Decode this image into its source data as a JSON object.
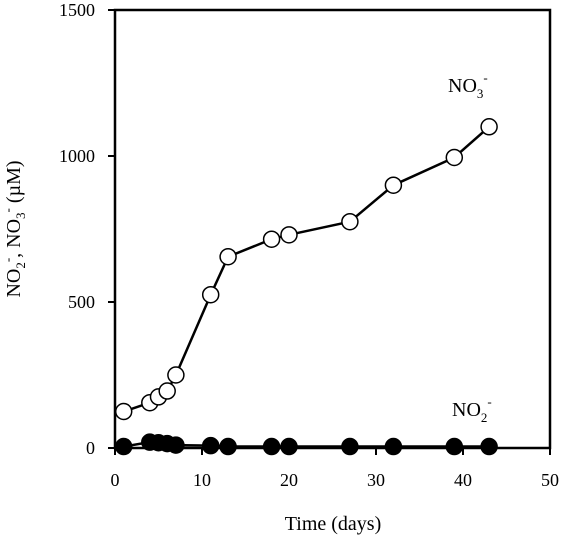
{
  "chart_data": {
    "type": "scatter",
    "title": "",
    "xlabel": "Time (days)",
    "ylabel": {
      "base_a": "NO",
      "sub_a": "2",
      "sup_a": "-",
      "sep": ", NO",
      "sub_b": "3",
      "sup_b": "-",
      "unit": " (µM)"
    },
    "xlim": [
      0,
      50
    ],
    "ylim": [
      0,
      1500
    ],
    "x_ticks": [
      "0",
      "10",
      "20",
      "30",
      "40",
      "50"
    ],
    "y_ticks": [
      "0",
      "500",
      "1000",
      "1500"
    ],
    "grid": false,
    "legend": "none",
    "series": [
      {
        "name": "NO3-",
        "label_base": "NO",
        "label_sub": "3",
        "label_sup": "-",
        "marker": "open-circle",
        "color": "#000000",
        "x": [
          1,
          4,
          5,
          6,
          7,
          11,
          13,
          18,
          20,
          27,
          32,
          39,
          43
        ],
        "y": [
          125,
          155,
          175,
          195,
          250,
          525,
          655,
          715,
          730,
          775,
          900,
          995,
          1100
        ]
      },
      {
        "name": "NO2-",
        "label_base": "NO",
        "label_sub": "2",
        "label_sup": "-",
        "marker": "filled-circle",
        "color": "#000000",
        "x": [
          1,
          4,
          5,
          6,
          7,
          11,
          13,
          18,
          20,
          27,
          32,
          39,
          43
        ],
        "y": [
          5,
          20,
          18,
          15,
          10,
          8,
          5,
          5,
          5,
          5,
          5,
          5,
          5
        ]
      }
    ]
  }
}
